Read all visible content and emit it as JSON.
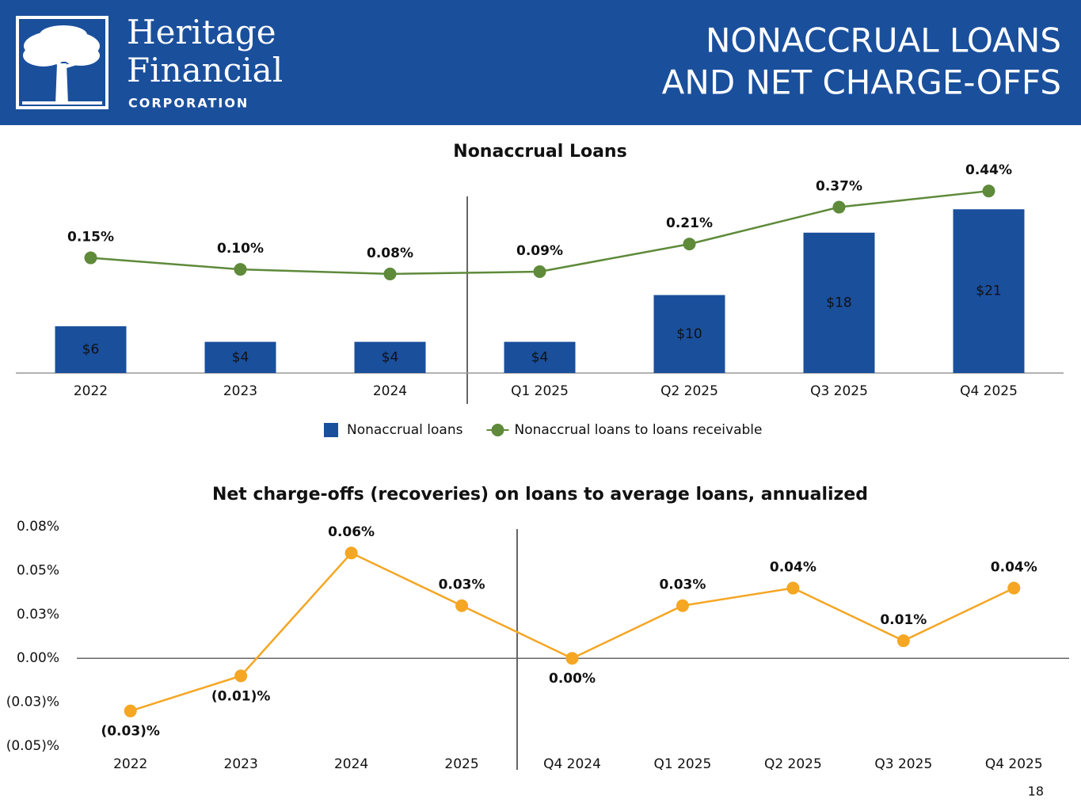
{
  "header": {
    "brand": [
      "Heritage",
      "Financial"
    ],
    "brand_sub": "CORPORATION",
    "title_lines": [
      "NONACCRUAL LOANS",
      "AND NET CHARGE-OFFS"
    ],
    "page_number": "18"
  },
  "chart_data": [
    {
      "type": "bar",
      "title": "Nonaccrual Loans",
      "categories": [
        "2022",
        "2023",
        "2024",
        "Q1 2025",
        "Q2 2025",
        "Q3 2025",
        "Q4 2025"
      ],
      "ylim": [
        0,
        26
      ],
      "y2lim": [
        -0.35,
        0.53
      ],
      "legend": "bottom",
      "series": [
        {
          "name": "Nonaccrual loans",
          "type": "bar",
          "color": "#1a4f9c",
          "values": [
            6,
            4,
            4,
            4,
            10,
            18,
            21
          ],
          "value_labels": [
            "$6",
            "$4",
            "$4",
            "$4",
            "$10",
            "$18",
            "$21"
          ]
        },
        {
          "name": "Nonaccrual loans to loans receivable",
          "type": "line",
          "axis": "y2",
          "color": "#5e8a3a",
          "values": [
            0.15,
            0.1,
            0.08,
            0.09,
            0.21,
            0.37,
            0.44
          ],
          "value_labels": [
            "0.15%",
            "0.10%",
            "0.08%",
            "0.09%",
            "0.21%",
            "0.37%",
            "0.44%"
          ]
        }
      ]
    },
    {
      "type": "line",
      "title": "Net charge-offs (recoveries) on loans to average loans, annualized",
      "categories": [
        "2022",
        "2023",
        "2024",
        "2025",
        "Q4 2024",
        "Q1 2025",
        "Q2 2025",
        "Q3 2025",
        "Q4 2025"
      ],
      "color": "#f5a623",
      "values": [
        -0.03,
        -0.01,
        0.06,
        0.03,
        0,
        0.03,
        0.04,
        0.01,
        0.04
      ],
      "value_labels": [
        "(0.03)%",
        "(0.01)%",
        "0.06%",
        "0.03%",
        "0.00%",
        "0.03%",
        "0.04%",
        "0.01%",
        "0.04%"
      ],
      "ylim": [
        -0.05,
        0.075
      ],
      "yticks": [
        {
          "value": 0.075,
          "label": "0.08%"
        },
        {
          "value": 0.05,
          "label": "0.05%"
        },
        {
          "value": 0.025,
          "label": "0.03%"
        },
        {
          "value": 0,
          "label": "0.00%"
        },
        {
          "value": -0.025,
          "label": "(0.03)%"
        },
        {
          "value": -0.05,
          "label": "(0.05)%"
        }
      ],
      "grid": false
    }
  ]
}
